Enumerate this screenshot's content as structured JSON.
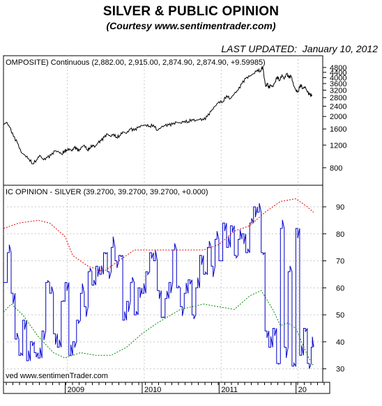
{
  "header": {
    "title": "SILVER & PUBLIC OPINION",
    "subtitle": "(Courtesy www.sentimentrader.com)",
    "updated": "LAST UPDATED:  January 10, 2012"
  },
  "colors": {
    "price": "#000000",
    "opinion": "#0000cc",
    "upper_band": "#dd0000",
    "lower_band": "#008800",
    "grid": "#c8c8c8"
  },
  "chart_data": [
    {
      "type": "line",
      "panel": "upper",
      "title": "OMPOSITE) Continuous (2,882.00, 2,915.00, 2,874.90, 2,874.90, +9.59985)",
      "ylim": [
        600,
        5100
      ],
      "y_scale": "log",
      "yticks": [
        800,
        1200,
        1600,
        2000,
        2400,
        2800,
        3200,
        3600,
        4000,
        4400,
        4800
      ],
      "grid": true,
      "series": [
        {
          "x": [
            0,
            0.04,
            0.08,
            0.13,
            0.18,
            0.23,
            0.28,
            0.33,
            0.38,
            0.43,
            0.47,
            0.52,
            0.57,
            0.62,
            0.67,
            0.72,
            0.76,
            0.79,
            0.82,
            0.86,
            0.89,
            0.92,
            0.95,
            0.98,
            1.02,
            1.05,
            1.09,
            1.12,
            1.16,
            1.19,
            1.23,
            1.27,
            1.31,
            1.35,
            1.39,
            1.43,
            1.47,
            1.51,
            1.55,
            1.6,
            1.65,
            1.7,
            1.75,
            1.8,
            1.85,
            1.9,
            1.95,
            2.0,
            2.05,
            2.1,
            2.15,
            2.2,
            2.25,
            2.3,
            2.35,
            2.4,
            2.45,
            2.5,
            2.55,
            2.6,
            2.65,
            2.7,
            2.75,
            2.8,
            2.85,
            2.9,
            2.95,
            3.0,
            3.05,
            3.1,
            3.15,
            3.2,
            3.25,
            3.3,
            3.34,
            3.37,
            3.39,
            3.41,
            3.43,
            3.45,
            3.47,
            3.5,
            3.53,
            3.56,
            3.59,
            3.62,
            3.65,
            3.68,
            3.71,
            3.74,
            3.77,
            3.8,
            3.83,
            3.86,
            3.89,
            3.92,
            3.95,
            3.98,
            4.01
          ],
          "values": [
            1730,
            1800,
            1650,
            1400,
            1250,
            1050,
            1000,
            940,
            860,
            920,
            1000,
            920,
            960,
            1000,
            1080,
            1060,
            1020,
            1080,
            1100,
            1120,
            1080,
            1150,
            1120,
            1080,
            1160,
            1200,
            1100,
            1140,
            1200,
            1160,
            1250,
            1300,
            1380,
            1460,
            1400,
            1460,
            1380,
            1420,
            1520,
            1480,
            1600,
            1560,
            1640,
            1700,
            1720,
            1680,
            1720,
            1560,
            1650,
            1700,
            1720,
            1740,
            1800,
            1780,
            1840,
            1820,
            1900,
            1860,
            1900,
            1880,
            2000,
            2200,
            2400,
            2600,
            2600,
            2900,
            2750,
            3000,
            3200,
            3600,
            3950,
            4100,
            4300,
            4600,
            4500,
            4900,
            3950,
            3400,
            3600,
            3300,
            3500,
            3400,
            3700,
            4100,
            3800,
            4200,
            3900,
            4300,
            4000,
            4100,
            3500,
            3200,
            3100,
            3550,
            3300,
            3400,
            3100,
            2950,
            2880
          ]
        }
      ]
    },
    {
      "type": "line",
      "panel": "lower",
      "title": "IC OPINION - SILVER (39.2700, 39.2700, 39.2700, +0.000)",
      "ylim": [
        25,
        98
      ],
      "yticks": [
        30,
        40,
        50,
        60,
        70,
        80,
        90
      ],
      "xlabels": [
        "2009",
        "2010",
        "2011",
        "20"
      ],
      "grid": true,
      "footer_text": "ved  www.sentimenTrader.com",
      "series": [
        {
          "name": "opinion",
          "x": [
            0,
            0.05,
            0.1,
            0.15,
            0.2,
            0.25,
            0.3,
            0.35,
            0.4,
            0.45,
            0.5,
            0.55,
            0.6,
            0.65,
            0.7,
            0.75,
            0.8,
            0.85,
            0.9,
            0.95,
            1.0,
            1.05,
            1.1,
            1.15,
            1.2,
            1.25,
            1.3,
            1.35,
            1.4,
            1.45,
            1.5,
            1.55,
            1.6,
            1.65,
            1.7,
            1.75,
            1.8,
            1.85,
            1.9,
            1.95,
            2.0,
            2.05,
            2.1,
            2.15,
            2.2,
            2.25,
            2.3,
            2.35,
            2.4,
            2.45,
            2.5,
            2.55,
            2.6,
            2.65,
            2.7,
            2.75,
            2.8,
            2.85,
            2.9,
            2.95,
            3.0,
            3.05,
            3.1,
            3.15,
            3.2,
            3.25,
            3.3,
            3.35,
            3.4,
            3.45,
            3.5,
            3.55,
            3.6,
            3.65,
            3.7,
            3.75,
            3.8,
            3.85,
            3.9,
            3.95,
            4.0,
            4.03
          ],
          "values": [
            62,
            73,
            58,
            41,
            35,
            48,
            33,
            40,
            36,
            34,
            44,
            62,
            58,
            43,
            38,
            55,
            62,
            35,
            40,
            48,
            58,
            53,
            66,
            61,
            68,
            65,
            73,
            66,
            75,
            70,
            72,
            48,
            55,
            62,
            50,
            60,
            58,
            66,
            73,
            70,
            59,
            49,
            56,
            62,
            74,
            60,
            53,
            58,
            63,
            50,
            60,
            72,
            65,
            75,
            68,
            78,
            70,
            84,
            75,
            83,
            72,
            78,
            80,
            73,
            84,
            90,
            88,
            73,
            44,
            38,
            45,
            32,
            82,
            38,
            66,
            31,
            82,
            35,
            45,
            32,
            38,
            39
          ]
        },
        {
          "name": "upper band",
          "x": [
            0,
            0.2,
            0.45,
            0.6,
            0.8,
            0.9,
            1.1,
            1.3,
            1.5,
            1.7,
            2.0,
            2.3,
            2.6,
            2.8,
            3.0,
            3.2,
            3.4,
            3.6,
            3.8,
            3.95,
            4.03
          ],
          "values": [
            82,
            84,
            85,
            84,
            79,
            72,
            68,
            66,
            70,
            74,
            74,
            74,
            74,
            76,
            81,
            83,
            88,
            92,
            93,
            90,
            88
          ]
        },
        {
          "name": "lower band",
          "x": [
            0,
            0.1,
            0.25,
            0.45,
            0.65,
            0.8,
            1.0,
            1.2,
            1.4,
            1.6,
            1.8,
            2.0,
            2.3,
            2.6,
            2.8,
            3.0,
            3.2,
            3.35,
            3.5,
            3.6,
            3.7,
            3.8,
            3.95,
            4.03
          ],
          "values": [
            51,
            54,
            50,
            42,
            36,
            34,
            36,
            35,
            35,
            38,
            43,
            47,
            52,
            54,
            53,
            52,
            57,
            59,
            52,
            46,
            47,
            45,
            35,
            31
          ]
        }
      ]
    }
  ]
}
